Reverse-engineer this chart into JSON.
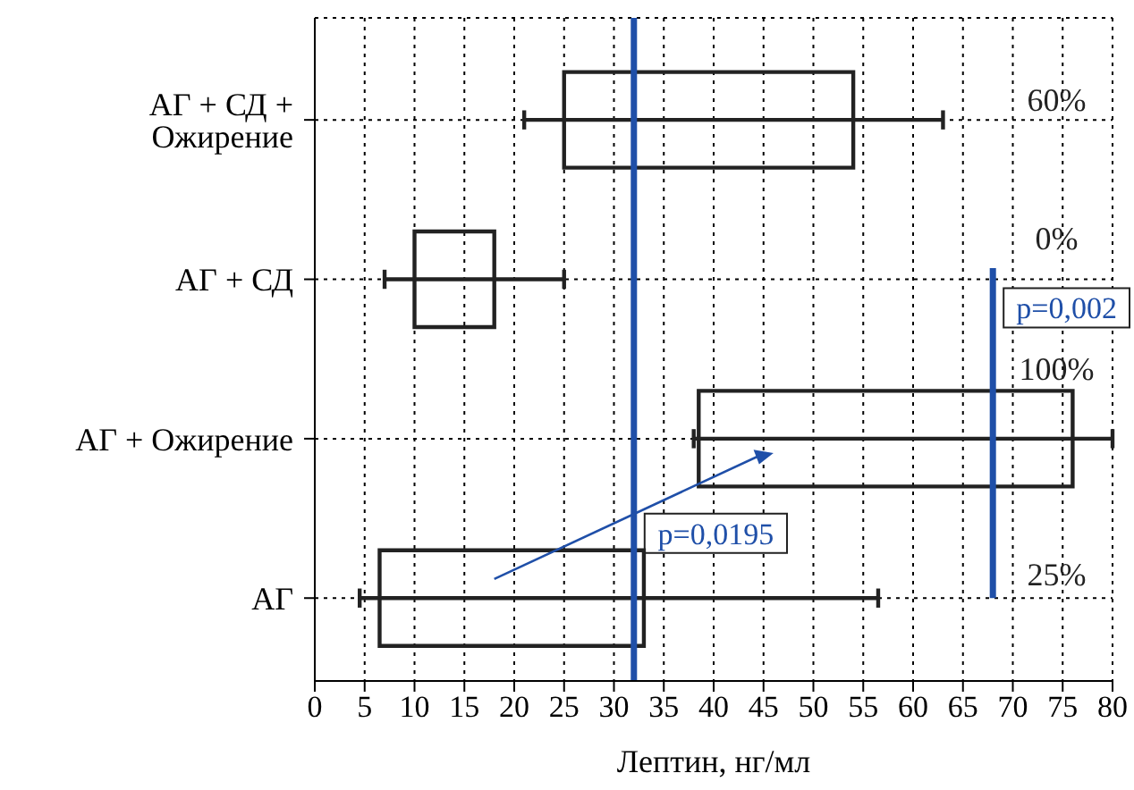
{
  "chart_data": {
    "type": "box",
    "orientation": "horizontal",
    "xlabel": "Лептин, нг/мл",
    "categories": [
      "АГ + СД + Ожирение",
      "АГ + СД",
      "АГ + Ожирение",
      "АГ"
    ],
    "boxes": [
      {
        "low": 21,
        "q1": 25,
        "q3": 54,
        "high": 63
      },
      {
        "low": 7,
        "q1": 10,
        "q3": 18,
        "high": 25
      },
      {
        "low": 38,
        "q1": 38.5,
        "q3": 76,
        "high": 80
      },
      {
        "low": 4.5,
        "q1": 6.5,
        "q3": 33,
        "high": 56.5
      }
    ],
    "color": "#222222",
    "xlim": [
      0,
      80
    ],
    "xticks": [
      0,
      5,
      10,
      15,
      20,
      25,
      30,
      35,
      40,
      45,
      50,
      55,
      60,
      65,
      70,
      75,
      80
    ],
    "grid": true,
    "ref_lines": [
      {
        "axis": "x",
        "value": 32,
        "color": "#1f4fa8"
      },
      {
        "axis": "x",
        "value": 68,
        "color": "#1f4fa8"
      }
    ],
    "annotations": [
      "60%",
      "0%",
      "100%",
      "25%",
      "p=0,0195",
      "p=0,002"
    ]
  }
}
